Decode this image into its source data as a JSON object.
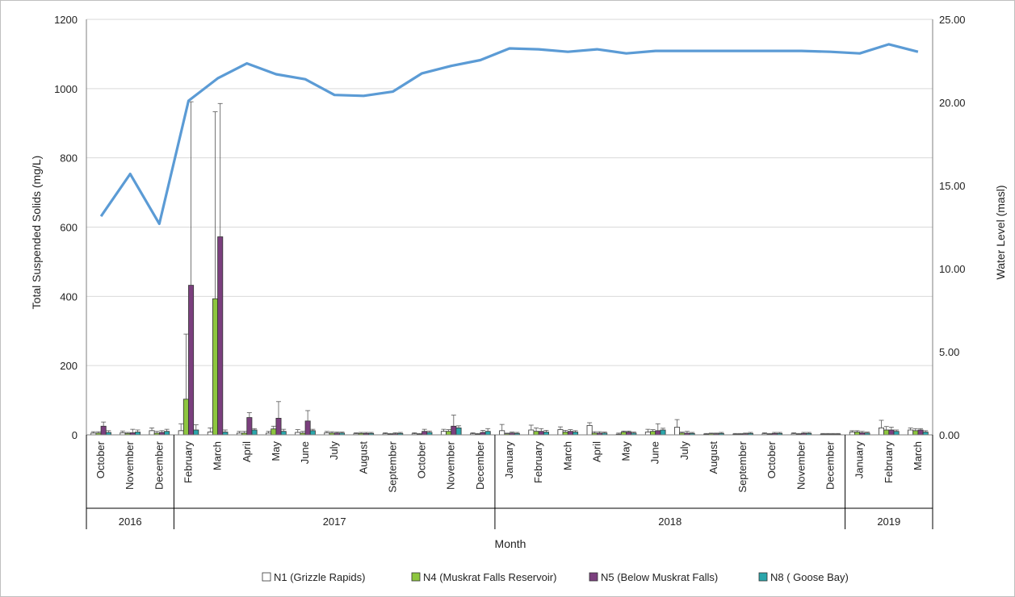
{
  "chart_data": {
    "type": "bar",
    "xlabel": "Month",
    "ylabel": "Total Suspended Solids (mg/L)",
    "y2label": "Water Level (masl)",
    "ylim": [
      0,
      1200
    ],
    "y2lim": [
      0,
      25
    ],
    "yticks": [
      "0",
      "200",
      "400",
      "600",
      "800",
      "1000",
      "1200"
    ],
    "y2ticks": [
      "0.00",
      "5.00",
      "10.00",
      "15.00",
      "20.00",
      "25.00"
    ],
    "grid": true,
    "legend_position": "bottom",
    "categories": [
      "October",
      "November",
      "December",
      "February",
      "March",
      "April",
      "May",
      "June",
      "July",
      "August",
      "September",
      "October",
      "November",
      "December",
      "January",
      "February",
      "March",
      "April",
      "May",
      "June",
      "July",
      "August",
      "September",
      "October",
      "November",
      "December",
      "January",
      "February",
      "March"
    ],
    "year_groups": [
      {
        "label": "2016",
        "count": 3
      },
      {
        "label": "2017",
        "count": 11
      },
      {
        "label": "2018",
        "count": 12
      },
      {
        "label": "2019",
        "count": 3
      }
    ],
    "series": [
      {
        "name": "N1 (Grizzle Rapids)",
        "color": "#ffffff",
        "values": [
          5,
          6,
          12,
          12,
          8,
          5,
          5,
          7,
          6,
          3,
          3,
          3,
          10,
          3,
          12,
          14,
          15,
          27,
          2,
          8,
          22,
          2,
          2,
          3,
          3,
          2,
          8,
          20,
          14
        ],
        "errors": [
          4,
          5,
          8,
          20,
          12,
          5,
          5,
          8,
          4,
          3,
          3,
          3,
          6,
          3,
          18,
          14,
          8,
          8,
          3,
          8,
          22,
          2,
          2,
          3,
          3,
          2,
          4,
          22,
          6
        ]
      },
      {
        "name": "N4 (Muskrat Falls Reservoir)",
        "color": "#8dc63f",
        "values": [
          5,
          4,
          5,
          103,
          393,
          5,
          17,
          5,
          5,
          4,
          2,
          2,
          10,
          2,
          3,
          10,
          8,
          5,
          8,
          10,
          5,
          3,
          2,
          2,
          2,
          2,
          8,
          14,
          12
        ],
        "errors": [
          4,
          3,
          5,
          188,
          540,
          5,
          8,
          5,
          4,
          3,
          2,
          2,
          5,
          2,
          2,
          10,
          5,
          4,
          3,
          5,
          3,
          2,
          2,
          2,
          2,
          2,
          4,
          10,
          6
        ]
      },
      {
        "name": "N5 (Below Muskrat Falls)",
        "color": "#7b3f7e",
        "values": [
          25,
          6,
          7,
          432,
          572,
          50,
          48,
          40,
          5,
          4,
          3,
          10,
          25,
          7,
          5,
          10,
          10,
          5,
          8,
          12,
          5,
          3,
          3,
          4,
          4,
          2,
          6,
          14,
          14
        ],
        "errors": [
          12,
          10,
          5,
          530,
          385,
          14,
          48,
          30,
          3,
          3,
          3,
          6,
          32,
          6,
          3,
          8,
          5,
          4,
          3,
          20,
          5,
          2,
          2,
          3,
          3,
          2,
          4,
          8,
          4
        ]
      },
      {
        "name": "N8 ( Goose Bay)",
        "color": "#2aa6ab",
        "values": [
          7,
          8,
          10,
          14,
          8,
          14,
          10,
          12,
          5,
          4,
          4,
          7,
          20,
          10,
          4,
          8,
          8,
          5,
          5,
          14,
          4,
          4,
          4,
          4,
          4,
          2,
          5,
          10,
          8
        ],
        "errors": [
          5,
          6,
          6,
          15,
          6,
          4,
          6,
          4,
          3,
          3,
          3,
          4,
          6,
          8,
          3,
          5,
          4,
          3,
          3,
          5,
          3,
          3,
          3,
          3,
          3,
          2,
          3,
          4,
          4
        ]
      }
    ],
    "line_series": {
      "name": "Water Level (masl)",
      "color": "#5b9bd5",
      "values": [
        13.15,
        15.7,
        12.7,
        20.1,
        21.45,
        22.35,
        21.7,
        21.4,
        20.45,
        20.4,
        20.65,
        21.75,
        22.2,
        22.55,
        23.25,
        23.2,
        23.05,
        23.2,
        22.95,
        23.1,
        23.1,
        23.1,
        23.1,
        23.1,
        23.1,
        23.05,
        22.95,
        23.5,
        23.05
      ]
    }
  }
}
